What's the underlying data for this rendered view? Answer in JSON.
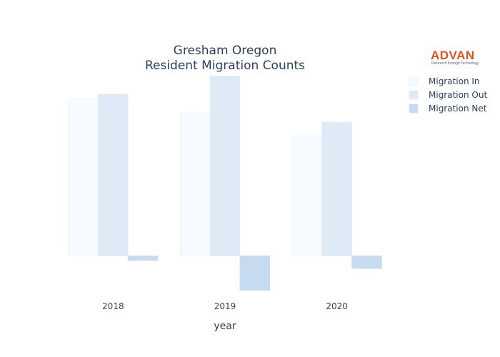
{
  "logo": {
    "name": "ADVAN",
    "tagline": "Research through Technology"
  },
  "chart_data": {
    "type": "bar",
    "title_lines": [
      "Gresham Oregon",
      "Resident Migration Counts"
    ],
    "xlabel": "year",
    "ylabel": "",
    "categories": [
      "2018",
      "2019",
      "2020"
    ],
    "series": [
      {
        "name": "Migration In",
        "values": [
          6.8,
          6.2,
          5.2
        ],
        "color": "#f7fbff",
        "stroke": "#e3eefa"
      },
      {
        "name": "Migration Out",
        "values": [
          7.0,
          7.8,
          5.8
        ],
        "color": "#deebf7",
        "stroke": "#deebf7"
      },
      {
        "name": "Migration Net",
        "values": [
          -0.2,
          -1.5,
          -0.55
        ],
        "color": "#c6dbef",
        "stroke": "#c6dbef"
      }
    ],
    "ylim": [
      -1.6,
      8.0
    ],
    "grid": false,
    "legend_position": "top-right"
  }
}
